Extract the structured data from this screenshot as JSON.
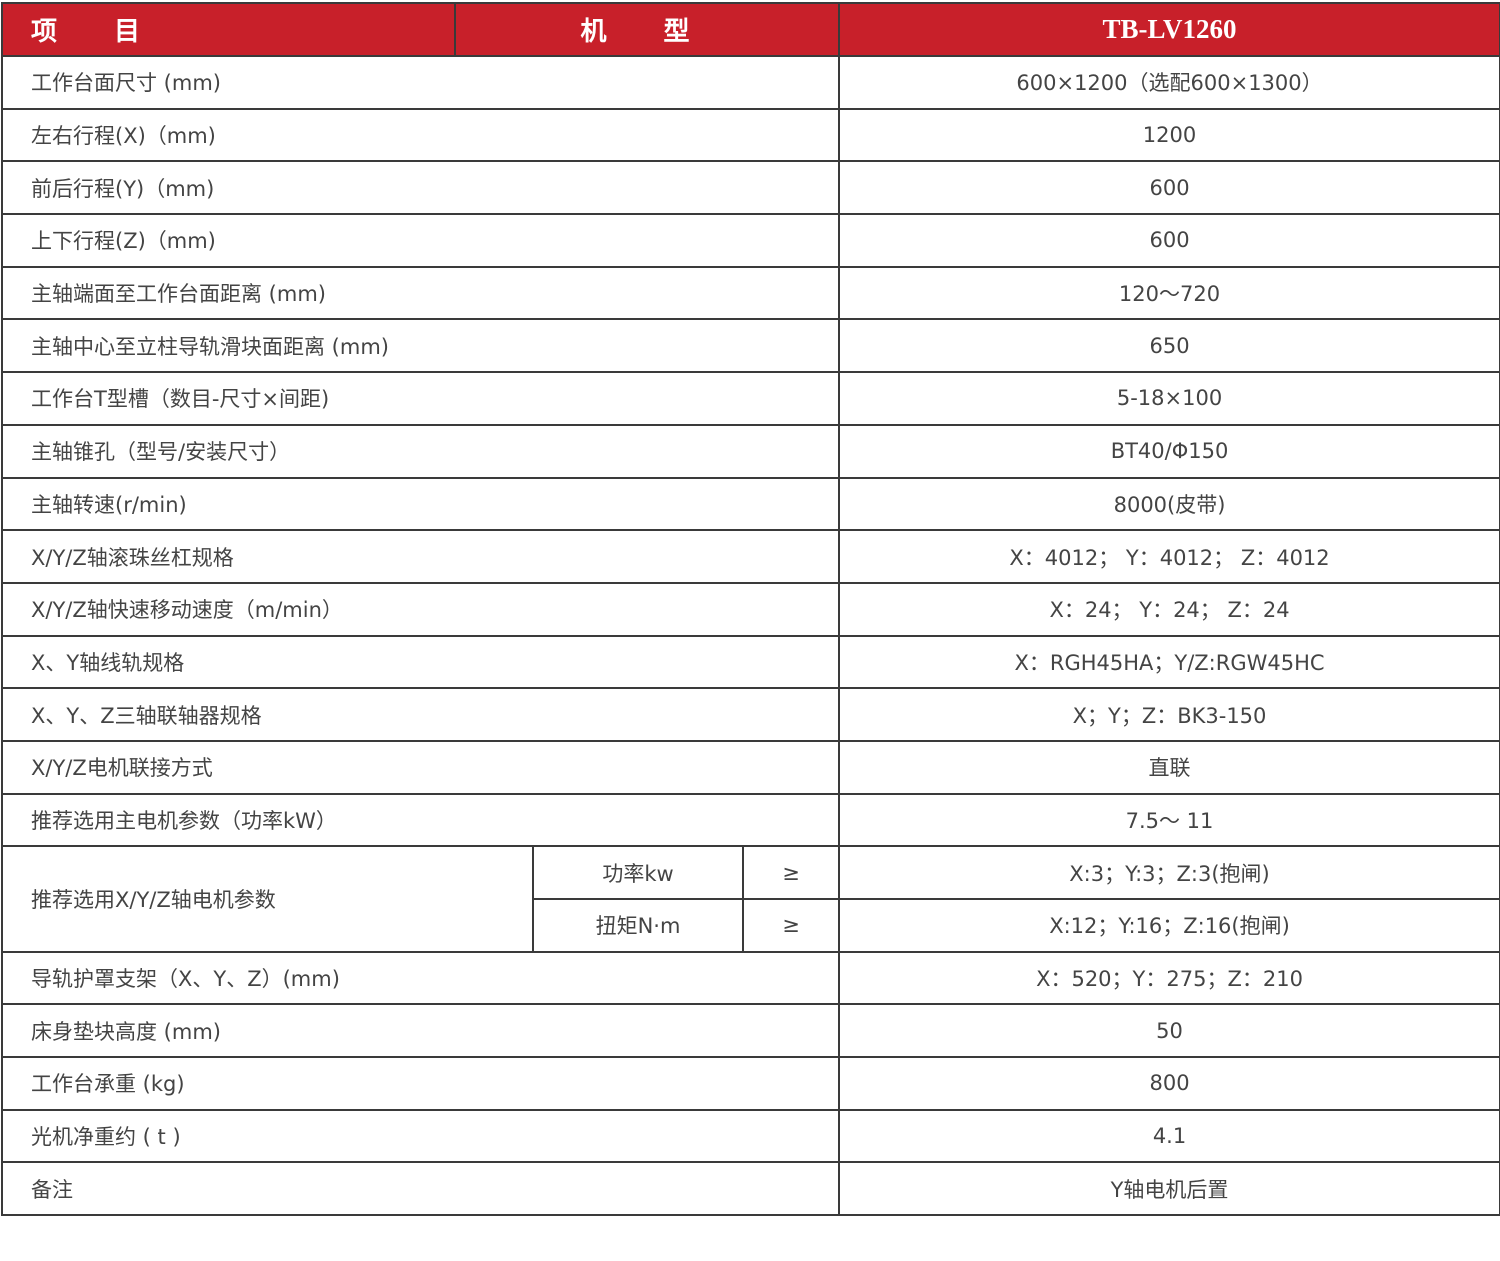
{
  "header": {
    "col1": "项 目",
    "col2": "机 型",
    "col3": "TB-LV1260"
  },
  "rows": [
    {
      "label": "工作台面尺寸 (mm)",
      "value": "600×1200（选配600×1300）"
    },
    {
      "label": "左右行程(X)（mm)",
      "value": "1200"
    },
    {
      "label": "前后行程(Y)（mm)",
      "value": "600"
    },
    {
      "label": "上下行程(Z)（mm)",
      "value": "600"
    },
    {
      "label": "主轴端面至工作台面距离 (mm)",
      "value": "120～720"
    },
    {
      "label": "主轴中心至立柱导轨滑块面距离 (mm)",
      "value": "650"
    },
    {
      "label": "工作台T型槽（数目-尺寸×间距)",
      "value": "5-18×100"
    },
    {
      "label": "主轴锥孔（型号/安装尺寸）",
      "value": "BT40/Φ150"
    },
    {
      "label": "主轴转速(r/min)",
      "value": "8000(皮带)"
    },
    {
      "label": "X/Y/Z轴滚珠丝杠规格",
      "value": "X：4012； Y：4012； Z：4012"
    },
    {
      "label": "X/Y/Z轴快速移动速度（m/min）",
      "value": "X：24； Y：24； Z：24"
    },
    {
      "label": "X、Y轴线轨规格",
      "value": "X：RGH45HA；Y/Z:RGW45HC"
    },
    {
      "label": "X、Y、Z三轴联轴器规格",
      "value": "X；Y；Z：BK3-150"
    },
    {
      "label": "X/Y/Z电机联接方式",
      "value": "直联"
    },
    {
      "label": "推荐选用主电机参数（功率kW）",
      "value": "7.5～ 11"
    }
  ],
  "motor": {
    "label": "推荐选用X/Y/Z轴电机参数",
    "sub": [
      {
        "name": "功率kw",
        "op": "≥",
        "value": "X:3；Y:3；Z:3(抱闸)"
      },
      {
        "name": "扭矩N·m",
        "op": "≥",
        "value": "X:12；Y:16；Z:16(抱闸)"
      }
    ]
  },
  "rows2": [
    {
      "label": "导轨护罩支架（X、Y、Z）(mm)",
      "value": "X：520；Y：275；Z：210"
    },
    {
      "label": "床身垫块高度 (mm)",
      "value": "50"
    },
    {
      "label": "工作台承重 (kg)",
      "value": "800"
    },
    {
      "label": "光机净重约 ( t )",
      "value": "4.1"
    },
    {
      "label": "备注",
      "value": "Y轴电机后置"
    }
  ],
  "colors": {
    "header_bg": "#c8202a",
    "header_text": "#ffffff",
    "text": "#444444",
    "border": "#3a3a3a"
  }
}
